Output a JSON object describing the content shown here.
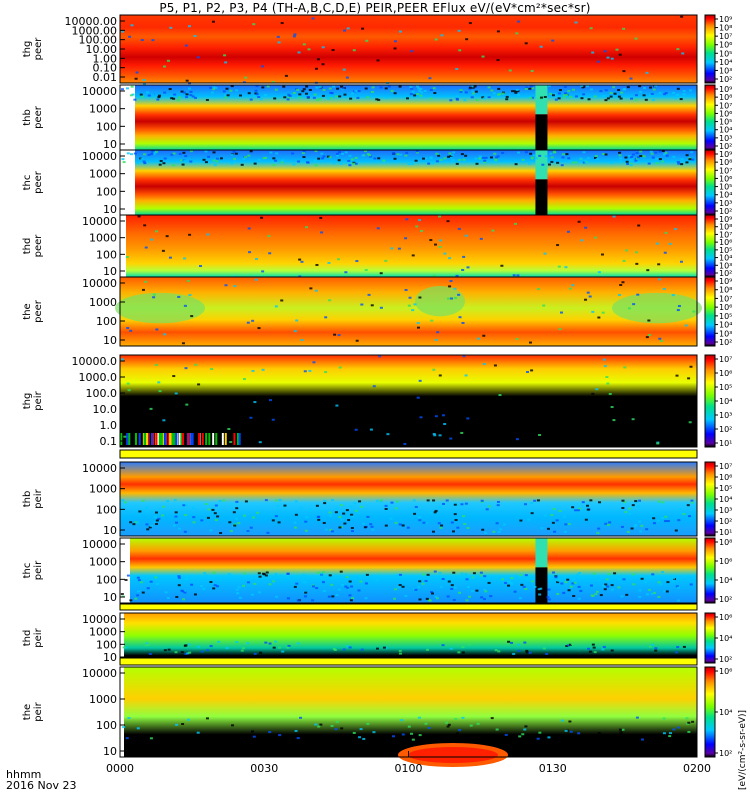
{
  "title": "P5, P1, P2, P3, P4 (TH-A,B,C,D,E) PEIR,PEER EFlux eV/(eV*cm²*sec*sr)",
  "x_axis": {
    "ticks": [
      "0000",
      "0030",
      "0100",
      "0130",
      "0200"
    ],
    "format_label": "hhmm",
    "date_label": "2016 Nov 23"
  },
  "colorbar_title": "[eV/(cm²-s-sr-eV)]",
  "chart_data": [
    {
      "type": "heatmap",
      "ylabel": "thg peer",
      "probe": "thg",
      "species": "peer",
      "y_ticks": [
        "10000.00",
        "1000.00",
        "100.00",
        "10.00",
        "1.00",
        "0.10",
        "0.01"
      ],
      "cbar_ticks": [
        "10⁹",
        "10⁸",
        "10⁷",
        "10⁶",
        "10⁵",
        "10⁴",
        "10³",
        "10²"
      ],
      "scheme": "thg_peer"
    },
    {
      "type": "heatmap",
      "ylabel": "thb peer",
      "probe": "thb",
      "species": "peer",
      "y_ticks": [
        "10000",
        "1000",
        "100",
        "10"
      ],
      "cbar_ticks": [
        "10⁹",
        "10⁸",
        "10⁷",
        "10⁶",
        "10⁵",
        "10⁴",
        "10³",
        "10²"
      ],
      "scheme": "peer_band_gap"
    },
    {
      "type": "heatmap",
      "ylabel": "thc peer",
      "probe": "thc",
      "species": "peer",
      "y_ticks": [
        "10000",
        "1000",
        "100",
        "10"
      ],
      "cbar_ticks": [
        "10⁹",
        "10⁸",
        "10⁷",
        "10⁶",
        "10⁵",
        "10⁴",
        "10³",
        "10²"
      ],
      "scheme": "peer_band_gap"
    },
    {
      "type": "heatmap",
      "ylabel": "thd peer",
      "probe": "thd",
      "species": "peer",
      "y_ticks": [
        "10000",
        "1000",
        "100",
        "10"
      ],
      "cbar_ticks": [
        "10⁹",
        "10⁸",
        "10⁷",
        "10⁶",
        "10⁵",
        "10⁴",
        "10³",
        "10²"
      ],
      "scheme": "thd_peer"
    },
    {
      "type": "heatmap",
      "ylabel": "the peer",
      "probe": "the",
      "species": "peer",
      "y_ticks": [
        "10000",
        "1000",
        "100",
        "10"
      ],
      "cbar_ticks": [
        "10⁹",
        "10⁸",
        "10⁷",
        "10⁶",
        "10⁵",
        "10⁴",
        "10³",
        "10²"
      ],
      "scheme": "the_peer"
    },
    {
      "type": "heatmap",
      "ylabel": "thg peir",
      "probe": "thg",
      "species": "peir",
      "y_ticks": [
        "10000.0",
        "1000.0",
        "100.0",
        "10.0",
        "1.0",
        "0.1"
      ],
      "cbar_ticks": [
        "10⁷",
        "10⁶",
        "10⁵",
        "10⁴",
        "10³",
        "10²",
        "10¹"
      ],
      "scheme": "thg_peir"
    },
    {
      "type": "heatmap",
      "ylabel": "thb peir",
      "probe": "thb",
      "species": "peir",
      "y_ticks": [
        "10000",
        "1000",
        "100",
        "10"
      ],
      "cbar_ticks": [
        "10⁷",
        "10⁶",
        "10⁵",
        "10⁴",
        "10³",
        "10²",
        "10¹"
      ],
      "scheme": "peir_band"
    },
    {
      "type": "heatmap",
      "ylabel": "thc peir",
      "probe": "thc",
      "species": "peir",
      "y_ticks": [
        "10000",
        "1000",
        "100",
        "10"
      ],
      "cbar_ticks": [
        "10⁸",
        "10⁶",
        "10⁴",
        "10²"
      ],
      "scheme": "peir_band_gap"
    },
    {
      "type": "heatmap",
      "ylabel": "thd peir",
      "probe": "thd",
      "species": "peir",
      "y_ticks": [
        "10000",
        "1000",
        "100",
        "10"
      ],
      "cbar_ticks": [
        "10⁶",
        "10⁴",
        "10²"
      ],
      "scheme": "thd_peir"
    },
    {
      "type": "heatmap",
      "ylabel": "the peir",
      "probe": "the",
      "species": "peir",
      "y_ticks": [
        "10000",
        "1000",
        "100",
        "10"
      ],
      "cbar_ticks": [
        "10⁶",
        "10⁴",
        "10²"
      ],
      "scheme": "the_peir"
    }
  ]
}
